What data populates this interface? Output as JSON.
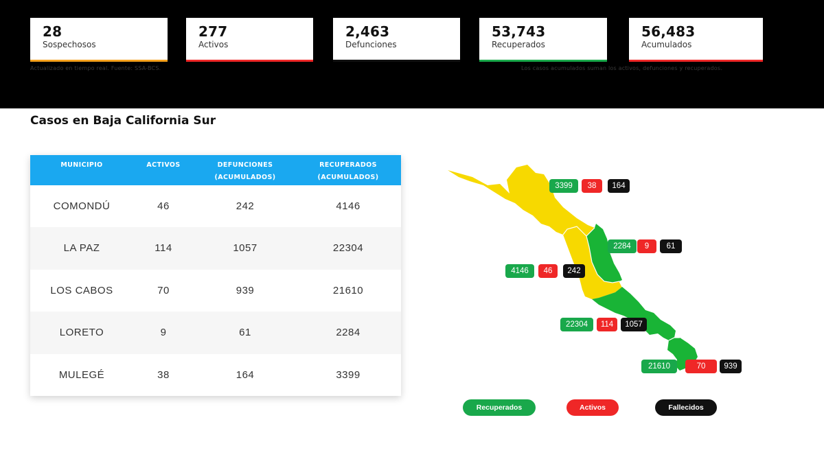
{
  "stats": [
    {
      "value": "28",
      "label": "Sospechosos",
      "color": "#f5a11c"
    },
    {
      "value": "277",
      "label": "Activos",
      "color": "#ef2727"
    },
    {
      "value": "2,463",
      "label": "Defunciones",
      "color": "#111111"
    },
    {
      "value": "53,743",
      "label": "Recuperados",
      "color": "#19a84b"
    },
    {
      "value": "56,483",
      "label": "Acumulados",
      "color": "#ef2727"
    }
  ],
  "notes": {
    "left": "Actualizado en tiempo real. Fuente: SSA-BCS.",
    "right": "Los casos acumulados suman los activos, defunciones y recuperados."
  },
  "section_title": "Casos en Baja California Sur",
  "table": {
    "headers": [
      {
        "line1": "MUNICIPIO",
        "line2": ""
      },
      {
        "line1": "ACTIVOS",
        "line2": ""
      },
      {
        "line1": "DEFUNCIONES",
        "line2": "(ACUMULADOS)"
      },
      {
        "line1": "RECUPERADOS",
        "line2": "(ACUMULADOS)"
      }
    ],
    "rows": [
      {
        "municipio": "COMONDÚ",
        "activos": "46",
        "defunciones": "242",
        "recuperados": "4146"
      },
      {
        "municipio": "LA PAZ",
        "activos": "114",
        "defunciones": "1057",
        "recuperados": "22304"
      },
      {
        "municipio": "LOS CABOS",
        "activos": "70",
        "defunciones": "939",
        "recuperados": "21610"
      },
      {
        "municipio": "LORETO",
        "activos": "9",
        "defunciones": "61",
        "recuperados": "2284"
      },
      {
        "municipio": "MULEGÉ",
        "activos": "38",
        "defunciones": "164",
        "recuperados": "3399"
      }
    ]
  },
  "map": {
    "colors": {
      "yellow": "#f7d900",
      "green": "#19b436"
    },
    "labels": {
      "mulege": {
        "recuperados": "3399",
        "activos": "38",
        "fallecidos": "164"
      },
      "loreto": {
        "recuperados": "2284",
        "activos": "9",
        "fallecidos": "61"
      },
      "comondu": {
        "recuperados": "4146",
        "activos": "46",
        "fallecidos": "242"
      },
      "la_paz": {
        "recuperados": "22304",
        "activos": "114",
        "fallecidos": "1057"
      },
      "los_cabos": {
        "recuperados": "21610",
        "activos": "70",
        "fallecidos": "939"
      }
    }
  },
  "legend": {
    "recuperados": "Recuperados",
    "activos": "Activos",
    "fallecidos": "Fallecidos"
  }
}
